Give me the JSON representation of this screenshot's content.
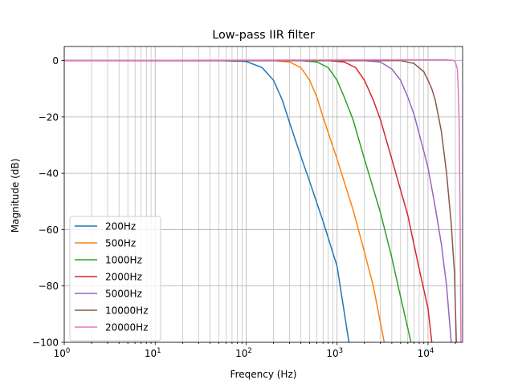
{
  "chart_data": {
    "type": "line",
    "title": "Low-pass IIR filter",
    "xlabel": "Freqency (Hz)",
    "ylabel": "Magnitude (dB)",
    "xscale": "log",
    "xlim": [
      1,
      24000
    ],
    "ylim": [
      -100,
      5
    ],
    "grid": "x-major-and-minor",
    "legend_position": "lower-left",
    "x_ticks": [
      {
        "value": 1,
        "base": "10",
        "exp": "0"
      },
      {
        "value": 10,
        "base": "10",
        "exp": "1"
      },
      {
        "value": 100,
        "base": "10",
        "exp": "2"
      },
      {
        "value": 1000,
        "base": "10",
        "exp": "3"
      },
      {
        "value": 10000,
        "base": "10",
        "exp": "4"
      }
    ],
    "y_ticks": [
      {
        "value": 0,
        "label": "0"
      },
      {
        "value": -20,
        "label": "−20"
      },
      {
        "value": -40,
        "label": "−40"
      },
      {
        "value": -60,
        "label": "−60"
      },
      {
        "value": -80,
        "label": "−80"
      },
      {
        "value": -100,
        "label": "−100"
      }
    ],
    "series": [
      {
        "name": "200Hz",
        "color": "#1f77b4",
        "points": [
          [
            1,
            0
          ],
          [
            50,
            0
          ],
          [
            100,
            -0.3
          ],
          [
            150,
            -2.5
          ],
          [
            200,
            -7
          ],
          [
            250,
            -14
          ],
          [
            300,
            -22
          ],
          [
            400,
            -34
          ],
          [
            500,
            -43
          ],
          [
            700,
            -57
          ],
          [
            1000,
            -73
          ],
          [
            1350,
            -100
          ]
        ]
      },
      {
        "name": "500Hz",
        "color": "#ff7f0e",
        "points": [
          [
            1,
            0
          ],
          [
            200,
            0
          ],
          [
            300,
            -0.5
          ],
          [
            400,
            -2.5
          ],
          [
            500,
            -7
          ],
          [
            600,
            -13
          ],
          [
            700,
            -20
          ],
          [
            1000,
            -35
          ],
          [
            1500,
            -53
          ],
          [
            2000,
            -68
          ],
          [
            2500,
            -80
          ],
          [
            3300,
            -100
          ]
        ]
      },
      {
        "name": "1000Hz",
        "color": "#2ca02c",
        "points": [
          [
            1,
            0
          ],
          [
            400,
            0
          ],
          [
            600,
            -0.5
          ],
          [
            800,
            -2.5
          ],
          [
            1000,
            -7
          ],
          [
            1200,
            -13
          ],
          [
            1500,
            -21
          ],
          [
            2000,
            -35
          ],
          [
            3000,
            -54
          ],
          [
            4000,
            -70
          ],
          [
            5000,
            -84
          ],
          [
            6500,
            -100
          ]
        ]
      },
      {
        "name": "2000Hz",
        "color": "#d62728",
        "points": [
          [
            1,
            0
          ],
          [
            800,
            0
          ],
          [
            1200,
            -0.5
          ],
          [
            1600,
            -2.5
          ],
          [
            2000,
            -7
          ],
          [
            2500,
            -14
          ],
          [
            3000,
            -21
          ],
          [
            4000,
            -35
          ],
          [
            6000,
            -55
          ],
          [
            8000,
            -74
          ],
          [
            10000,
            -88
          ],
          [
            11000,
            -100
          ]
        ]
      },
      {
        "name": "5000Hz",
        "color": "#9467bd",
        "points": [
          [
            1,
            0
          ],
          [
            2000,
            0
          ],
          [
            3000,
            -0.5
          ],
          [
            4000,
            -3
          ],
          [
            5000,
            -7
          ],
          [
            6000,
            -13
          ],
          [
            7000,
            -19
          ],
          [
            8000,
            -26
          ],
          [
            10000,
            -38
          ],
          [
            12000,
            -52
          ],
          [
            14000,
            -65
          ],
          [
            16000,
            -80
          ],
          [
            18000,
            -100
          ]
        ]
      },
      {
        "name": "10000Hz",
        "color": "#8c564b",
        "points": [
          [
            1,
            0
          ],
          [
            5000,
            0
          ],
          [
            7000,
            -1
          ],
          [
            9000,
            -4
          ],
          [
            10000,
            -7
          ],
          [
            11000,
            -10
          ],
          [
            12000,
            -14
          ],
          [
            14000,
            -25
          ],
          [
            16000,
            -40
          ],
          [
            18000,
            -58
          ],
          [
            19500,
            -75
          ],
          [
            20500,
            -100
          ]
        ]
      },
      {
        "name": "20000Hz",
        "color": "#e377c2",
        "points": [
          [
            1,
            0
          ],
          [
            15000,
            0.3
          ],
          [
            19000,
            0.1
          ],
          [
            20000,
            -0.5
          ],
          [
            21000,
            -3
          ],
          [
            21500,
            -10
          ],
          [
            22000,
            -22
          ],
          [
            22500,
            -55
          ],
          [
            23000,
            -100
          ]
        ]
      }
    ]
  }
}
